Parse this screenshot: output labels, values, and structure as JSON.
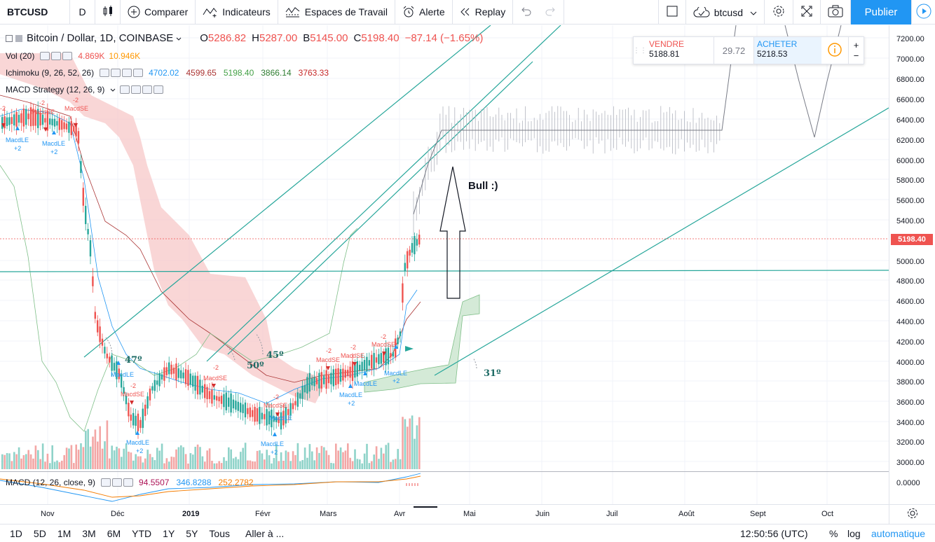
{
  "toolbar": {
    "symbol": "BTCUSD",
    "interval": "D",
    "compare_label": "Comparer",
    "indicators_label": "Indicateurs",
    "workspaces_label": "Espaces de Travail",
    "alert_label": "Alerte",
    "replay_label": "Replay",
    "account_label": "btcusd",
    "publish_label": "Publier"
  },
  "legend": {
    "symbol_title": "Bitcoin / Dollar, 1D, COINBASE",
    "o_label": "O",
    "o_value": "5286.82",
    "h_label": "H",
    "h_value": "5287.00",
    "b_label": "B",
    "b_value": "5145.00",
    "c_label": "C",
    "c_value": "5198.40",
    "change": "−87.14 (−1.65%)",
    "vol_name": "Vol (20)",
    "vol_v1": "4.869K",
    "vol_v2": "10.946K",
    "ichimoku_name": "Ichimoku (9, 26, 52, 26)",
    "ich_v1": "4702.02",
    "ich_v2": "4599.65",
    "ich_v3": "5198.40",
    "ich_v4": "3866.14",
    "ich_v5": "3763.33",
    "macd_strategy_name": "MACD Strategy (12, 26, 9)",
    "macd_name": "MACD (12, 26, close, 9)",
    "macd_v1": "94.5507",
    "macd_v2": "346.8288",
    "macd_v3": "252.2782"
  },
  "trade": {
    "sell_label": "VENDRE",
    "sell_price": "5188.81",
    "spread": "29.72",
    "buy_label": "ACHETER",
    "buy_price": "5218.53",
    "plus": "+",
    "minus": "−"
  },
  "annotations": {
    "bull_text": "Bull :)",
    "angle_47": "47º",
    "angle_50": "50º",
    "angle_45": "45º",
    "angle_31": "31º"
  },
  "price_axis": {
    "labels": [
      "7200.00",
      "7000.00",
      "6800.00",
      "6600.00",
      "6400.00",
      "6200.00",
      "6000.00",
      "5800.00",
      "5600.00",
      "5400.00",
      "5000.00",
      "4800.00",
      "4600.00",
      "4400.00",
      "4200.00",
      "4000.00",
      "3800.00",
      "3600.00",
      "3400.00",
      "3200.00",
      "3000.00"
    ],
    "current_price": "5198.40",
    "macd_zero": "0.0000"
  },
  "time_axis": {
    "months": [
      "Nov",
      "Déc",
      "2019",
      "Févr",
      "Mars",
      "Avr",
      "Mai",
      "Juin",
      "Juil",
      "Août",
      "Sept",
      "Oct"
    ]
  },
  "bottom": {
    "ranges": [
      "1D",
      "5D",
      "1M",
      "3M",
      "6M",
      "YTD",
      "1Y",
      "5Y",
      "Tous"
    ],
    "goto_label": "Aller à ...",
    "clock": "12:50:56 (UTC)",
    "percent": "%",
    "log": "log",
    "auto": "automatique"
  },
  "colors": {
    "up": "#26a69a",
    "down": "#ef5350",
    "accent": "#2196f3",
    "trendline": "#26a69a"
  }
}
